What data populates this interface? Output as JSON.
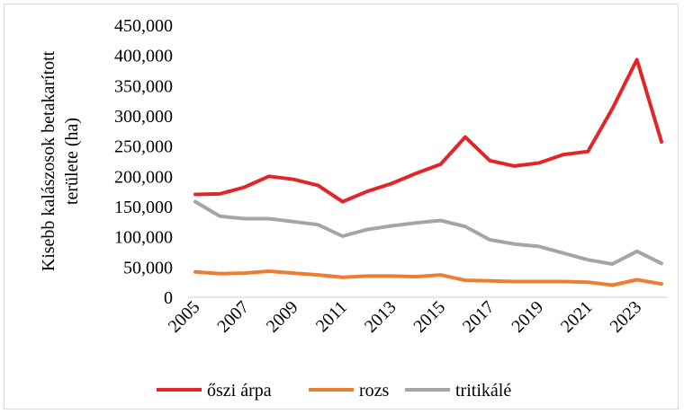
{
  "chart_data": {
    "type": "line",
    "title": "",
    "xlabel": "",
    "ylabel_lines": [
      "Kisebb kalászosok betakarított",
      "területe (ha)"
    ],
    "x": [
      2005,
      2006,
      2007,
      2008,
      2009,
      2010,
      2011,
      2012,
      2013,
      2014,
      2015,
      2016,
      2017,
      2018,
      2019,
      2020,
      2021,
      2022,
      2023,
      2024
    ],
    "x_tick_labels": [
      "2005",
      "2007",
      "2009",
      "2011",
      "2013",
      "2015",
      "2017",
      "2019",
      "2021",
      "2023"
    ],
    "ylim": [
      0,
      450000
    ],
    "y_tick_labels": [
      "0",
      "50,000",
      "100,000",
      "150,000",
      "200,000",
      "250,000",
      "300,000",
      "350,000",
      "400,000",
      "450,000"
    ],
    "grid": false,
    "legend_position": "bottom",
    "series": [
      {
        "name": "őszi árpa",
        "color": "#e0262a",
        "values": [
          170000,
          171000,
          182000,
          200000,
          195000,
          185000,
          158000,
          175000,
          188000,
          205000,
          220000,
          265000,
          226000,
          217000,
          222000,
          236000,
          241000,
          312000,
          393000,
          257000
        ]
      },
      {
        "name": "rozs",
        "color": "#ed7d31",
        "values": [
          42000,
          39000,
          40000,
          43000,
          40000,
          37000,
          33000,
          35000,
          35000,
          34000,
          37000,
          28000,
          27000,
          26000,
          26000,
          26000,
          25000,
          20000,
          29000,
          22000
        ]
      },
      {
        "name": "tritikálé",
        "color": "#a5a5a5",
        "values": [
          158000,
          134000,
          130000,
          130000,
          125000,
          120000,
          101000,
          112000,
          118000,
          123000,
          127000,
          117000,
          95000,
          88000,
          84000,
          73000,
          62000,
          55000,
          76000,
          56000
        ]
      }
    ]
  }
}
